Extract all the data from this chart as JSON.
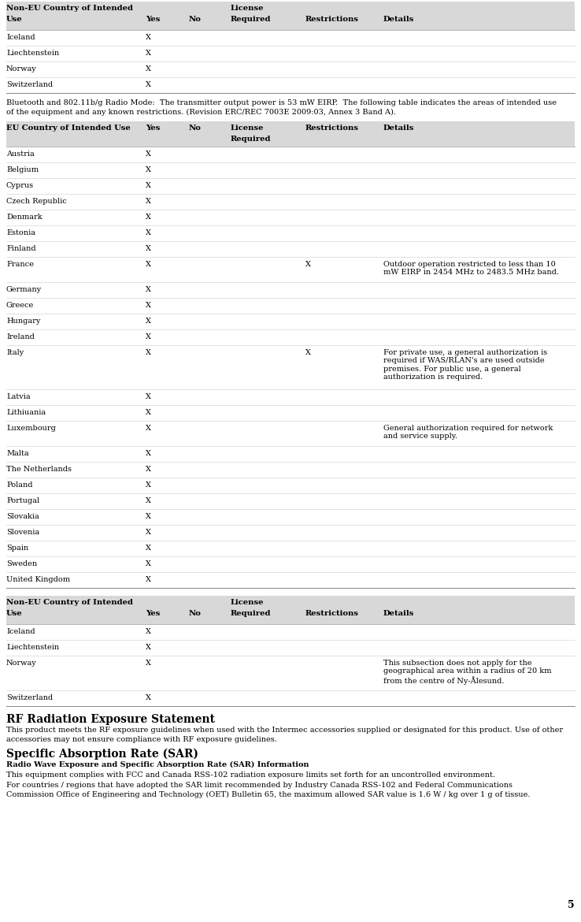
{
  "bg_color": "#ffffff",
  "header_bg": "#d8d8d8",
  "row_line_color": "#cccccc",
  "text_color": "#000000",
  "table1_title": "Non-EU Country of Intended\nUse",
  "table2_title": "EU Country of Intended Use",
  "table3_title": "Non-EU Country of Intended\nUse",
  "headers": [
    "Yes",
    "No",
    "License\nRequired",
    "Restrictions",
    "Details"
  ],
  "table1_rows": [
    [
      "Iceland",
      "X",
      "",
      "",
      "",
      ""
    ],
    [
      "Liechtenstein",
      "X",
      "",
      "",
      "",
      ""
    ],
    [
      "Norway",
      "X",
      "",
      "",
      "",
      ""
    ],
    [
      "Switzerland",
      "X",
      "",
      "",
      "",
      ""
    ]
  ],
  "bluetooth_text": "Bluetooth and 802.11b/g Radio Mode:  The transmitter output power is 53 mW EIRP.  The following table indicates the areas of intended use of the equipment and any known restrictions. (Revision ERC/REC 7003E 2009:03, Annex 3 Band A).",
  "table2_rows": [
    [
      "Austria",
      "X",
      "",
      "",
      "",
      ""
    ],
    [
      "Belgium",
      "X",
      "",
      "",
      "",
      ""
    ],
    [
      "Cyprus",
      "X",
      "",
      "",
      "",
      ""
    ],
    [
      "Czech Republic",
      "X",
      "",
      "",
      "",
      ""
    ],
    [
      "Denmark",
      "X",
      "",
      "",
      "",
      ""
    ],
    [
      "Estonia",
      "X",
      "",
      "",
      "",
      ""
    ],
    [
      "Finland",
      "X",
      "",
      "",
      "",
      ""
    ],
    [
      "France",
      "X",
      "",
      "",
      "X",
      "Outdoor operation restricted to less than 10\nmW EIRP in 2454 MHz to 2483.5 MHz band."
    ],
    [
      "Germany",
      "X",
      "",
      "",
      "",
      ""
    ],
    [
      "Greece",
      "X",
      "",
      "",
      "",
      ""
    ],
    [
      "Hungary",
      "X",
      "",
      "",
      "",
      ""
    ],
    [
      "Ireland",
      "X",
      "",
      "",
      "",
      ""
    ],
    [
      "Italy",
      "X",
      "",
      "",
      "X",
      "For private use, a general authorization is\nrequired if WAS/RLAN's are used outside\npremises. For public use, a general\nauthorization is required."
    ],
    [
      "Latvia",
      "X",
      "",
      "",
      "",
      ""
    ],
    [
      "Lithiuania",
      "X",
      "",
      "",
      "",
      ""
    ],
    [
      "Luxembourg",
      "X",
      "",
      "",
      "",
      "General authorization required for network\nand service supply."
    ],
    [
      "Malta",
      "X",
      "",
      "",
      "",
      ""
    ],
    [
      "The Netherlands",
      "X",
      "",
      "",
      "",
      ""
    ],
    [
      "Poland",
      "X",
      "",
      "",
      "",
      ""
    ],
    [
      "Portugal",
      "X",
      "",
      "",
      "",
      ""
    ],
    [
      "Slovakia",
      "X",
      "",
      "",
      "",
      ""
    ],
    [
      "Slovenia",
      "X",
      "",
      "",
      "",
      ""
    ],
    [
      "Spain",
      "X",
      "",
      "",
      "",
      ""
    ],
    [
      "Sweden",
      "X",
      "",
      "",
      "",
      ""
    ],
    [
      "United Kingdom",
      "X",
      "",
      "",
      "",
      ""
    ]
  ],
  "table3_rows": [
    [
      "Iceland",
      "X",
      "",
      "",
      "",
      ""
    ],
    [
      "Liechtenstein",
      "X",
      "",
      "",
      "",
      ""
    ],
    [
      "Norway",
      "X",
      "",
      "",
      "",
      "This subsection does not apply for the\ngeographical area within a radius of 20 km\nfrom the centre of Ny-Ålesund."
    ],
    [
      "Switzerland",
      "X",
      "",
      "",
      "",
      ""
    ]
  ],
  "rf_title": "RF Radiation Exposure Statement",
  "rf_body": "This product meets the RF exposure guidelines when used with the Intermec accessories supplied or designated for this product. Use of other accessories may not ensure compliance with RF exposure guidelines.",
  "sar_title": "Specific Absorption Rate (SAR)",
  "sar_subtitle": "Radio Wave Exposure and Specific Absorption Rate (SAR) Information",
  "sar_body1": "This equipment complies with FCC and Canada RSS-102 radiation exposure limits set forth for an uncontrolled environment.",
  "sar_body2": "For countries / regions that have adopted the SAR limit recommended by Industry Canada RSS-102 and Federal Communications Commission Office of Engineering and Technology (OET) Bulletin 65, the maximum allowed SAR value is 1.6 W / kg over 1 g of tissue.",
  "page_number": "5"
}
